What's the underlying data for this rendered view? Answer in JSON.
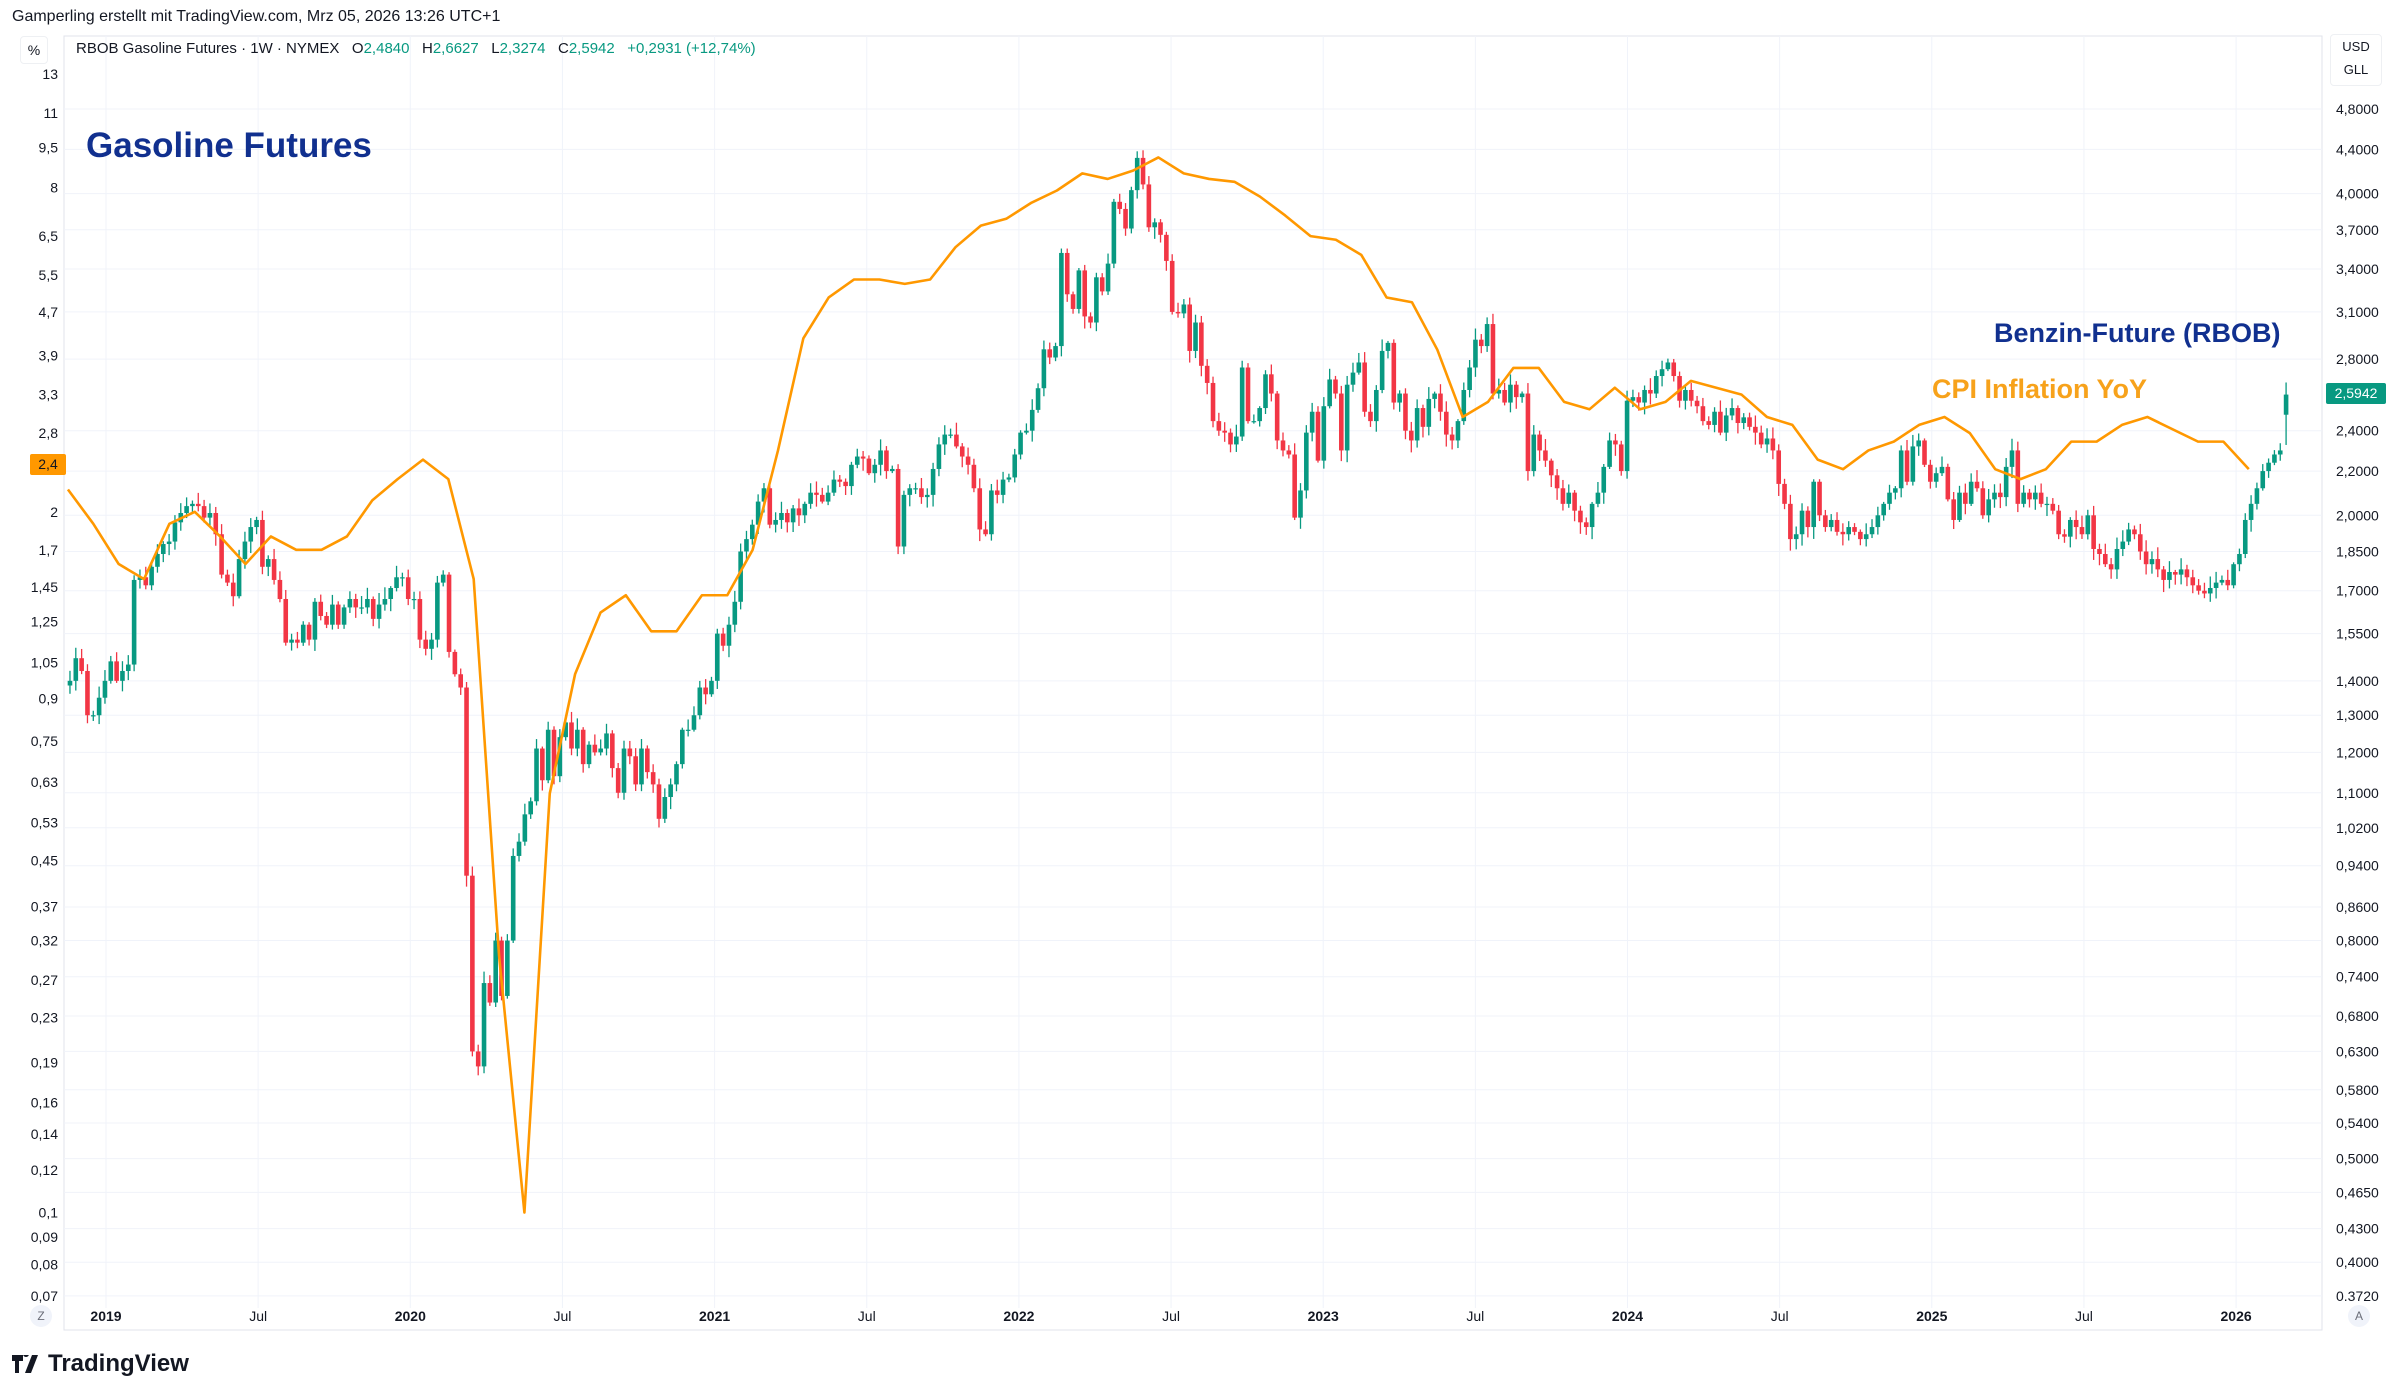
{
  "attribution": "Gamperling erstellt mit TradingView.com, Mrz 05, 2026 13:26 UTC+1",
  "legend": {
    "symbol": "RBOB Gasoline Futures · 1W · NYMEX",
    "o_label": "O",
    "o": "2,4840",
    "h_label": "H",
    "h": "2,6627",
    "l_label": "L",
    "l": "2,3274",
    "c_label": "C",
    "c": "2,5942",
    "change": "+0,2931 (+12,74%)"
  },
  "left_scale_button": "%",
  "currency": "USD",
  "unit": "GLL",
  "annotations": {
    "title": "Gasoline Futures",
    "rbob": "Benzin-Future (RBOB)",
    "cpi": "CPI Inflation YoY"
  },
  "price_badge": "2,5942",
  "cpi_badge": "2,4",
  "scale_buttons": {
    "left": "Z",
    "right": "A"
  },
  "logo": "TradingView",
  "colors": {
    "up": "#089981",
    "down": "#f23645",
    "cpi_line": "#ff9800",
    "title": "#11308f",
    "grid": "#f0f3fa"
  },
  "chart_data": {
    "type": "candlestick+line",
    "title": "Gasoline Futures",
    "price_series": {
      "name": "RBOB Gasoline Futures",
      "interval": "1W",
      "start_week": "2018-11-19",
      "closes": [
        1.4,
        1.47,
        1.43,
        1.3,
        1.3,
        1.35,
        1.4,
        1.46,
        1.4,
        1.43,
        1.45,
        1.74,
        1.75,
        1.72,
        1.79,
        1.84,
        1.88,
        1.89,
        1.97,
        2.01,
        2.04,
        2.05,
        2.04,
        1.99,
        2.01,
        1.92,
        1.76,
        1.73,
        1.68,
        1.82,
        1.89,
        1.95,
        1.98,
        1.79,
        1.82,
        1.74,
        1.67,
        1.52,
        1.53,
        1.52,
        1.58,
        1.53,
        1.66,
        1.61,
        1.58,
        1.65,
        1.58,
        1.64,
        1.67,
        1.64,
        1.64,
        1.67,
        1.6,
        1.65,
        1.67,
        1.71,
        1.75,
        1.75,
        1.67,
        1.67,
        1.53,
        1.5,
        1.53,
        1.73,
        1.76,
        1.49,
        1.42,
        1.38,
        0.92,
        0.63,
        0.61,
        0.73,
        0.7,
        0.8,
        0.71,
        0.8,
        0.96,
        0.99,
        1.05,
        1.08,
        1.21,
        1.13,
        1.26,
        1.14,
        1.24,
        1.28,
        1.21,
        1.26,
        1.17,
        1.22,
        1.2,
        1.21,
        1.25,
        1.16,
        1.1,
        1.21,
        1.19,
        1.12,
        1.21,
        1.15,
        1.12,
        1.04,
        1.09,
        1.12,
        1.17,
        1.26,
        1.26,
        1.3,
        1.38,
        1.36,
        1.4,
        1.55,
        1.51,
        1.58,
        1.66,
        1.85,
        1.9,
        1.96,
        2.06,
        2.12,
        1.96,
        1.98,
        2.01,
        1.97,
        2.03,
        2.0,
        2.05,
        2.1,
        2.09,
        2.06,
        2.1,
        2.16,
        2.15,
        2.13,
        2.23,
        2.27,
        2.26,
        2.19,
        2.23,
        2.3,
        2.2,
        2.21,
        1.87,
        2.09,
        2.12,
        2.12,
        2.08,
        2.09,
        2.21,
        2.33,
        2.38,
        2.38,
        2.32,
        2.27,
        2.23,
        2.12,
        1.94,
        1.92,
        2.11,
        2.09,
        2.16,
        2.17,
        2.28,
        2.39,
        2.4,
        2.51,
        2.63,
        2.86,
        2.81,
        2.88,
        3.52,
        3.22,
        3.12,
        3.39,
        3.07,
        3.03,
        3.34,
        3.24,
        3.44,
        3.93,
        3.87,
        3.71,
        4.03,
        4.32,
        4.08,
        3.72,
        3.76,
        3.66,
        3.46,
        3.1,
        3.09,
        3.15,
        2.85,
        3.03,
        2.76,
        2.66,
        2.45,
        2.4,
        2.39,
        2.33,
        2.37,
        2.75,
        2.45,
        2.45,
        2.52,
        2.71,
        2.6,
        2.35,
        2.3,
        2.28,
        1.99,
        2.11,
        2.39,
        2.5,
        2.25,
        2.53,
        2.68,
        2.6,
        2.3,
        2.65,
        2.72,
        2.78,
        2.5,
        2.45,
        2.62,
        2.85,
        2.9,
        2.55,
        2.6,
        2.4,
        2.35,
        2.52,
        2.42,
        2.57,
        2.6,
        2.5,
        2.38,
        2.35,
        2.45,
        2.62,
        2.75,
        2.92,
        2.88,
        3.02,
        2.6,
        2.62,
        2.55,
        2.65,
        2.58,
        2.6,
        2.2,
        2.38,
        2.3,
        2.25,
        2.18,
        2.12,
        2.05,
        2.1,
        2.02,
        1.97,
        1.95,
        2.05,
        2.1,
        2.22,
        2.35,
        2.33,
        2.2,
        2.56,
        2.58,
        2.55,
        2.62,
        2.6,
        2.7,
        2.74,
        2.78,
        2.7,
        2.56,
        2.62,
        2.56,
        2.53,
        2.45,
        2.43,
        2.5,
        2.39,
        2.48,
        2.52,
        2.44,
        2.47,
        2.42,
        2.39,
        2.33,
        2.36,
        2.3,
        2.14,
        2.05,
        1.9,
        1.92,
        2.02,
        1.95,
        2.15,
        2.0,
        1.95,
        1.98,
        1.93,
        1.92,
        1.95,
        1.93,
        1.9,
        1.92,
        1.95,
        2.0,
        2.05,
        2.1,
        2.12,
        2.3,
        2.15,
        2.32,
        2.35,
        2.23,
        2.15,
        2.19,
        2.22,
        2.07,
        1.98,
        2.1,
        2.05,
        2.15,
        2.12,
        2.0,
        2.07,
        2.1,
        2.08,
        2.22,
        2.3,
        2.05,
        2.1,
        2.07,
        2.1,
        2.05,
        2.05,
        2.02,
        1.92,
        1.91,
        1.98,
        1.95,
        1.92,
        2.0,
        1.86,
        1.84,
        1.8,
        1.78,
        1.86,
        1.89,
        1.94,
        1.92,
        1.85,
        1.8,
        1.82,
        1.78,
        1.74,
        1.77,
        1.76,
        1.78,
        1.75,
        1.72,
        1.7,
        1.69,
        1.71,
        1.73,
        1.74,
        1.72,
        1.8,
        1.84,
        1.98,
        2.05,
        2.12,
        2.2,
        2.24,
        2.28,
        2.3,
        2.5942
      ],
      "last_bar": {
        "open": 2.484,
        "high": 2.6627,
        "low": 2.3274,
        "close": 2.5942
      }
    },
    "cpi_series": {
      "name": "CPI Inflation YoY",
      "unit": "%",
      "start_month": "2018-11",
      "values": [
        2.2,
        1.9,
        1.6,
        1.5,
        1.9,
        2.0,
        1.8,
        1.6,
        1.8,
        1.7,
        1.7,
        1.8,
        2.1,
        2.3,
        2.5,
        2.3,
        1.5,
        0.3,
        0.1,
        0.6,
        1.0,
        1.3,
        1.4,
        1.2,
        1.2,
        1.4,
        1.4,
        1.7,
        2.6,
        4.2,
        5.0,
        5.4,
        5.4,
        5.3,
        5.4,
        6.2,
        6.8,
        7.0,
        7.5,
        7.9,
        8.5,
        8.3,
        8.6,
        9.1,
        8.5,
        8.3,
        8.2,
        7.7,
        7.1,
        6.5,
        6.4,
        6.0,
        5.0,
        4.9,
        4.0,
        3.0,
        3.2,
        3.7,
        3.7,
        3.2,
        3.1,
        3.4,
        3.1,
        3.2,
        3.5,
        3.4,
        3.3,
        3.0,
        2.9,
        2.5,
        2.4,
        2.6,
        2.7,
        2.9,
        3.0,
        2.8,
        2.4,
        2.3,
        2.4,
        2.7,
        2.7,
        2.9,
        3.0,
        null,
        2.7,
        2.7,
        2.4
      ]
    },
    "right_axis": {
      "scale": "log",
      "range": [
        0.372,
        4.8
      ],
      "ticks": [
        "4,8000",
        "4,4000",
        "4,0000",
        "3,7000",
        "3,4000",
        "3,1000",
        "2,8000",
        "2,4000",
        "2,2000",
        "2,0000",
        "1,8500",
        "1,7000",
        "1,5500",
        "1,4000",
        "1,3000",
        "1,2000",
        "1,1000",
        "1,0200",
        "0,9400",
        "0,8600",
        "0,8000",
        "0,7400",
        "0,6800",
        "0,6300",
        "0,5800",
        "0,5400",
        "0,5000",
        "0,4650",
        "0,4300",
        "0,4000",
        "0.3720"
      ]
    },
    "left_axis": {
      "scale": "log",
      "range": [
        0.07,
        13
      ],
      "ticks": [
        "13",
        "11",
        "9,5",
        "8",
        "6,5",
        "5,5",
        "4,7",
        "3,9",
        "3,3",
        "2,8",
        "2",
        "1,7",
        "1,45",
        "1,25",
        "1,05",
        "0,9",
        "0,75",
        "0,63",
        "0,53",
        "0,45",
        "0,37",
        "0,32",
        "0,27",
        "0,23",
        "0,19",
        "0,16",
        "0,14",
        "0,12",
        "0,1",
        "0,09",
        "0,08",
        "0,07"
      ]
    },
    "x_axis": {
      "ticks": [
        {
          "label": "2019",
          "t": 2019.0
        },
        {
          "label": "Jul",
          "t": 2019.5
        },
        {
          "label": "2020",
          "t": 2020.0
        },
        {
          "label": "Jul",
          "t": 2020.5
        },
        {
          "label": "2021",
          "t": 2021.0
        },
        {
          "label": "Jul",
          "t": 2021.5
        },
        {
          "label": "2022",
          "t": 2022.0
        },
        {
          "label": "Jul",
          "t": 2022.5
        },
        {
          "label": "2023",
          "t": 2023.0
        },
        {
          "label": "Jul",
          "t": 2023.5
        },
        {
          "label": "2024",
          "t": 2024.0
        },
        {
          "label": "Jul",
          "t": 2024.5
        },
        {
          "label": "2025",
          "t": 2025.0
        },
        {
          "label": "Jul",
          "t": 2025.5
        },
        {
          "label": "2026",
          "t": 2026.0
        }
      ]
    }
  }
}
